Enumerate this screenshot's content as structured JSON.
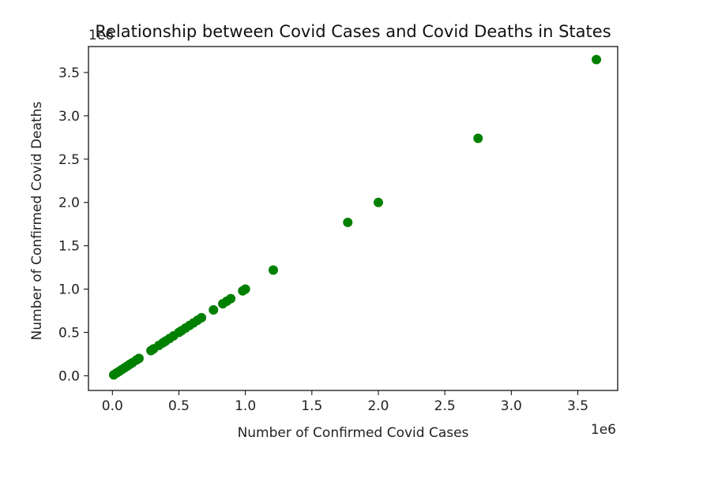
{
  "chart_data": {
    "type": "scatter",
    "title": "Relationship between Covid Cases and Covid Deaths in States",
    "xlabel": "Number of Confirmed Covid Cases",
    "ylabel": "Number of Confirmed Covid Deaths",
    "x_offset_label": "1e6",
    "y_offset_label": "1e6",
    "xlim": [
      -0.18,
      3.8
    ],
    "ylim": [
      -0.17,
      3.8
    ],
    "xticks": [
      0.0,
      0.5,
      1.0,
      1.5,
      2.0,
      2.5,
      3.0,
      3.5
    ],
    "xtick_labels": [
      "0.0",
      "0.5",
      "1.0",
      "1.5",
      "2.0",
      "2.5",
      "3.0",
      "3.5"
    ],
    "yticks": [
      0.0,
      0.5,
      1.0,
      1.5,
      2.0,
      2.5,
      3.0,
      3.5
    ],
    "ytick_labels": [
      "0.0",
      "0.5",
      "1.0",
      "1.5",
      "2.0",
      "2.5",
      "3.0",
      "3.5"
    ],
    "grid": false,
    "marker_color": "#008000",
    "series": [
      {
        "x": [
          0.01,
          0.03,
          0.05,
          0.07,
          0.09,
          0.11,
          0.13,
          0.15,
          0.18,
          0.2,
          0.29,
          0.31,
          0.35,
          0.38,
          0.4,
          0.43,
          0.46,
          0.5,
          0.52,
          0.55,
          0.58,
          0.61,
          0.64,
          0.67,
          0.76,
          0.83,
          0.86,
          0.89,
          0.98,
          1.0,
          1.21,
          1.77,
          2.0,
          2.75,
          3.64
        ],
        "y": [
          0.01,
          0.03,
          0.05,
          0.07,
          0.09,
          0.11,
          0.13,
          0.15,
          0.18,
          0.2,
          0.29,
          0.31,
          0.35,
          0.38,
          0.4,
          0.43,
          0.46,
          0.5,
          0.52,
          0.55,
          0.58,
          0.61,
          0.64,
          0.67,
          0.76,
          0.83,
          0.86,
          0.89,
          0.98,
          1.0,
          1.22,
          1.77,
          2.0,
          2.74,
          3.65
        ]
      }
    ]
  }
}
